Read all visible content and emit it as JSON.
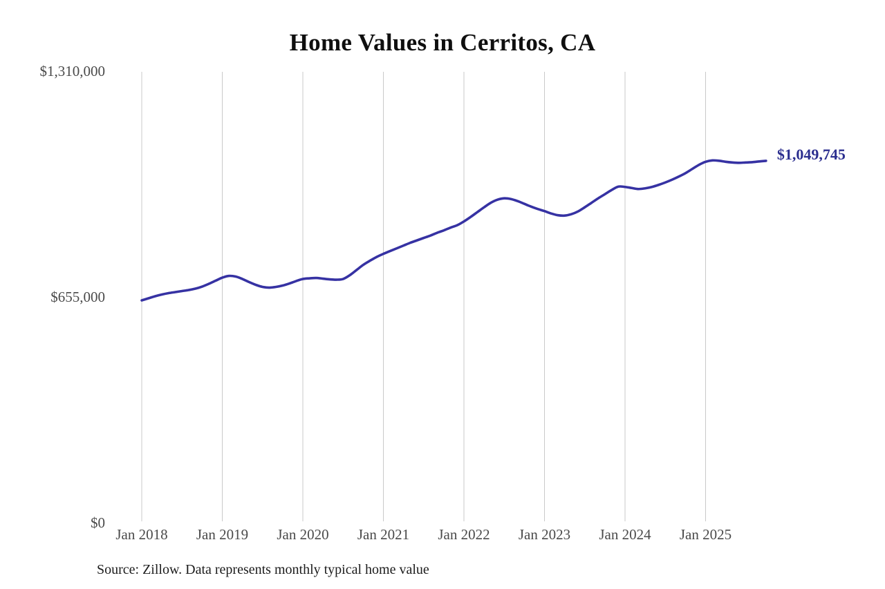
{
  "title": {
    "text": "Home Values in Cerritos, CA"
  },
  "source_note": {
    "text": "Source: Zillow. Data represents monthly typical home value"
  },
  "colors": {
    "background": "#FFFFFF",
    "title_text": "#0F0F0F",
    "line": "#3632A3",
    "end_label_text": "#2B2E8F",
    "grid": "#C9C9C9",
    "tick_text": "#4A4A4A",
    "source_text": "#1C1C1C"
  },
  "chart_data": {
    "type": "line",
    "title": "Home Values in Cerritos, CA",
    "xlabel": "",
    "ylabel": "",
    "x_unit": "month",
    "x_start": "Jan 2018",
    "x_end": "Oct 2025",
    "x_tick_labels": [
      "Jan 2018",
      "Jan 2019",
      "Jan 2020",
      "Jan 2021",
      "Jan 2022",
      "Jan 2023",
      "Jan 2024",
      "Jan 2025"
    ],
    "y_ticks": [
      {
        "label": "$0",
        "value": 0
      },
      {
        "label": "$655,000",
        "value": 655000
      },
      {
        "label": "$1,310,000",
        "value": 1310000
      }
    ],
    "ylim": [
      0,
      1310000
    ],
    "grid": "vertical-lines-at-each-january",
    "legend": "none",
    "end_label": {
      "text": "$1,049,745",
      "value": 1049745
    },
    "series": [
      {
        "name": "Monthly typical home value",
        "values": [
          645000,
          651000,
          657000,
          662000,
          666000,
          669000,
          672000,
          675000,
          679000,
          685000,
          693000,
          702000,
          711000,
          716000,
          714000,
          707000,
          698000,
          690000,
          684000,
          682000,
          684000,
          688000,
          694000,
          701000,
          707000,
          709000,
          710000,
          708000,
          706000,
          705000,
          707000,
          718000,
          733000,
          748000,
          760000,
          771000,
          780000,
          788000,
          796000,
          804000,
          812000,
          819000,
          826000,
          833000,
          841000,
          848000,
          856000,
          863000,
          874000,
          887000,
          901000,
          915000,
          928000,
          937000,
          941000,
          939000,
          933000,
          925000,
          917000,
          910000,
          904000,
          897000,
          892000,
          891000,
          895000,
          903000,
          915000,
          928000,
          941000,
          953000,
          965000,
          975000,
          974000,
          971000,
          968000,
          970000,
          974000,
          980000,
          987000,
          995000,
          1004000,
          1014000,
          1026000,
          1038000,
          1047000,
          1051000,
          1050000,
          1047000,
          1045000,
          1044000,
          1045000,
          1046000,
          1048000,
          1049745
        ]
      }
    ]
  }
}
